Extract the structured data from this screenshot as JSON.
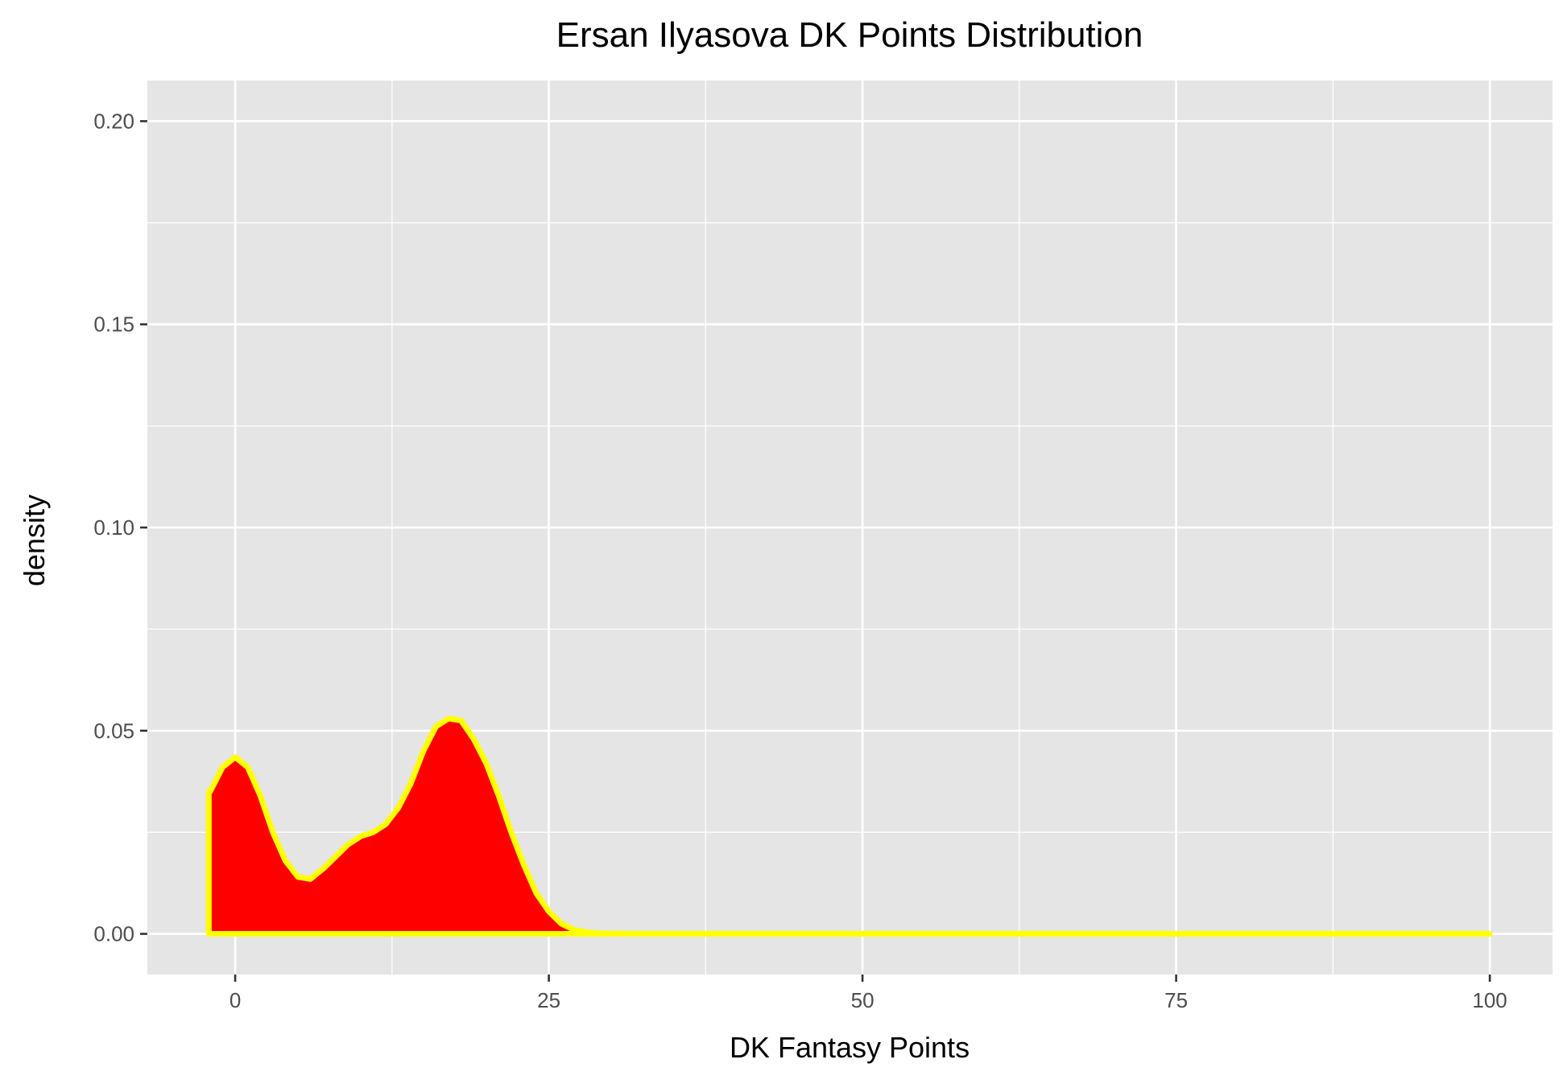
{
  "chart_data": {
    "type": "area",
    "title": "Ersan Ilyasova DK Points Distribution",
    "xlabel": "DK Fantasy Points",
    "ylabel": "density",
    "xlim": [
      -7,
      105
    ],
    "ylim": [
      -0.01,
      0.21
    ],
    "x_ticks": [
      0,
      25,
      50,
      75,
      100
    ],
    "x_tick_labels": [
      "0",
      "25",
      "50",
      "75",
      "100"
    ],
    "y_ticks": [
      0.0,
      0.05,
      0.1,
      0.15,
      0.2
    ],
    "y_tick_labels": [
      "0.00",
      "0.05",
      "0.10",
      "0.15",
      "0.20"
    ],
    "grid": true,
    "fill_color": "#ff0000",
    "line_color": "#ffff00",
    "panel_background": "#e5e5e5",
    "grid_color": "#ffffff",
    "series": [
      {
        "x": [
          -2.1,
          -2,
          -1,
          0,
          1,
          2,
          3,
          4,
          5,
          6,
          7,
          8,
          9,
          10,
          11,
          12,
          13,
          14,
          15,
          16,
          17,
          18,
          19,
          20,
          21,
          22,
          23,
          24,
          25,
          26,
          27,
          28,
          29,
          30,
          32,
          35,
          40,
          50,
          60,
          70,
          80,
          90,
          100
        ],
        "y": [
          0.035,
          0.035,
          0.041,
          0.0435,
          0.041,
          0.034,
          0.025,
          0.018,
          0.014,
          0.0135,
          0.016,
          0.019,
          0.022,
          0.024,
          0.025,
          0.027,
          0.031,
          0.037,
          0.045,
          0.051,
          0.053,
          0.0525,
          0.048,
          0.042,
          0.034,
          0.025,
          0.017,
          0.01,
          0.0055,
          0.0025,
          0.001,
          0.0004,
          0.0001,
          5e-05,
          0.0,
          0.0,
          0.0,
          0.0,
          0.0,
          0.0,
          0.0,
          0.0,
          0.0
        ]
      }
    ]
  }
}
